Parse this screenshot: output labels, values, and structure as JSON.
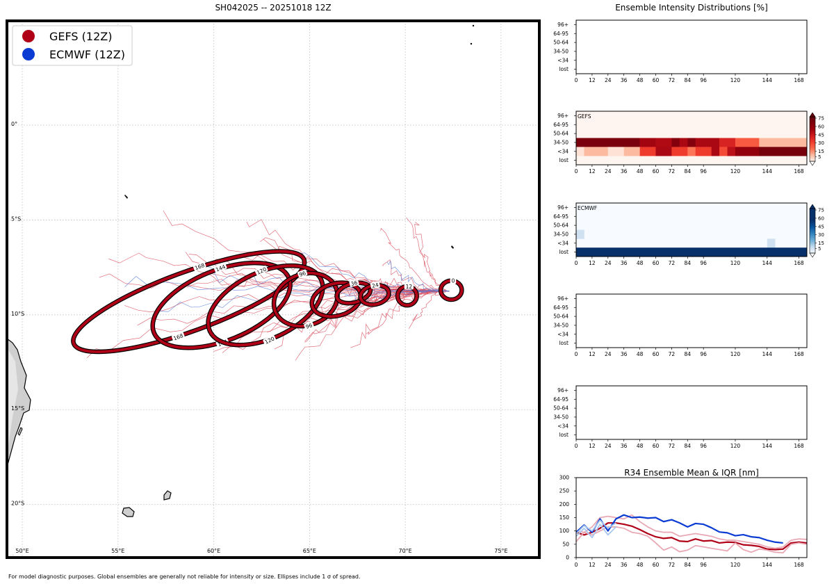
{
  "colors": {
    "gefs": "#b00018",
    "ecmwf": "#0a3cd4",
    "gefs_light": "#e8a8b4",
    "ecmwf_light": "#a8c8ee"
  },
  "map": {
    "title": "SH042025 -- 20251018 12Z",
    "lon_range": [
      49.2,
      77.0
    ],
    "lat_range": [
      -22.8,
      5.5
    ],
    "lon_ticks": [
      50,
      55,
      60,
      65,
      70,
      75
    ],
    "lon_labels": [
      "50°E",
      "55°E",
      "60°E",
      "65°E",
      "70°E",
      "75°E"
    ],
    "lat_ticks": [
      0,
      -5,
      -10,
      -15,
      -20
    ],
    "lat_labels": [
      "0°",
      "5°S",
      "10°S",
      "15°S",
      "20°S"
    ],
    "legend": [
      {
        "label": "GEFS (12Z)",
        "color": "#b00018"
      },
      {
        "label": "ECMWF (12Z)",
        "color": "#0a3cd4"
      }
    ],
    "ellipses": [
      {
        "hour": 0,
        "lon": 72.4,
        "lat": -8.7,
        "rx": 0.55,
        "ry": 0.5,
        "tilt": 0,
        "upper_label": "0",
        "lower_label": ""
      },
      {
        "hour": 12,
        "lon": 70.1,
        "lat": -9.0,
        "rx": 0.5,
        "ry": 0.5,
        "tilt": 0,
        "upper_label": "12",
        "lower_label": ""
      },
      {
        "hour": 24,
        "lon": 68.4,
        "lat": -8.95,
        "rx": 0.75,
        "ry": 0.5,
        "tilt": -12,
        "upper_label": "24",
        "lower_label": ""
      },
      {
        "hour": 36,
        "lon": 67.3,
        "lat": -8.85,
        "rx": 0.9,
        "ry": 0.5,
        "tilt": -15,
        "upper_label": "36",
        "lower_label": ""
      },
      {
        "hour": 48,
        "lon": 66.4,
        "lat": -9.2,
        "rx": 1.3,
        "ry": 0.85,
        "tilt": -15,
        "upper_label": "",
        "lower_label": ""
      },
      {
        "hour": 96,
        "lon": 64.8,
        "lat": -9.2,
        "rx": 1.7,
        "ry": 1.35,
        "tilt": -20,
        "upper_label": "96",
        "lower_label": "96"
      },
      {
        "hour": 120,
        "lon": 62.7,
        "lat": -9.5,
        "rx": 3.2,
        "ry": 1.75,
        "tilt": -25,
        "upper_label": "120",
        "lower_label": "120"
      },
      {
        "hour": 144,
        "lon": 60.4,
        "lat": -9.5,
        "rx": 3.8,
        "ry": 1.85,
        "tilt": -22,
        "upper_label": "144",
        "lower_label": "144"
      },
      {
        "hour": 168,
        "lon": 58.7,
        "lat": -9.3,
        "rx": 6.4,
        "ry": 1.55,
        "tilt": -20,
        "upper_label": "168",
        "lower_label": "168"
      }
    ],
    "footnote": "For model diagnostic purposes. Global ensembles are generally not reliable for intensity or size. Ellipses include 1 σ of spread."
  },
  "intensity": {
    "title": "Ensemble Intensity Distributions [%]",
    "y_labels": [
      "96+",
      "64-95",
      "50-64",
      "34-50",
      "<34",
      "lost"
    ],
    "x_ticks": [
      0,
      12,
      24,
      36,
      48,
      60,
      72,
      84,
      96,
      120,
      144,
      168
    ],
    "x_max": 174,
    "colorbar_ticks": [
      75,
      60,
      45,
      30,
      15,
      5
    ],
    "panels": [
      {
        "label": "",
        "cmap": "none",
        "rows": []
      },
      {
        "label": "GEFS",
        "cmap": "reds",
        "rows": [
          {
            "row": "34-50",
            "cells": [
              [
                0,
                48,
                90
              ],
              [
                48,
                60,
                72
              ],
              [
                60,
                72,
                68
              ],
              [
                72,
                78,
                85
              ],
              [
                78,
                84,
                70
              ],
              [
                84,
                90,
                85
              ],
              [
                90,
                108,
                70
              ],
              [
                108,
                120,
                55
              ],
              [
                120,
                138,
                35
              ],
              [
                138,
                174,
                15
              ]
            ]
          },
          {
            "row": "<34",
            "cells": [
              [
                0,
                6,
                5
              ],
              [
                6,
                24,
                15
              ],
              [
                24,
                36,
                5
              ],
              [
                36,
                48,
                15
              ],
              [
                48,
                60,
                45
              ],
              [
                60,
                72,
                70
              ],
              [
                72,
                84,
                45
              ],
              [
                84,
                90,
                28
              ],
              [
                90,
                102,
                45
              ],
              [
                102,
                108,
                70
              ],
              [
                108,
                114,
                40
              ],
              [
                114,
                120,
                65
              ],
              [
                120,
                138,
                78
              ],
              [
                138,
                174,
                92
              ]
            ]
          },
          {
            "row": "lost",
            "cells": []
          }
        ]
      },
      {
        "label": "ECMWF",
        "cmap": "blues",
        "rows": [
          {
            "row": "34-50",
            "cells": [
              [
                0,
                6,
                12
              ]
            ]
          },
          {
            "row": "<34",
            "cells": [
              [
                144,
                150,
                12
              ]
            ]
          },
          {
            "row": "lost",
            "cells": [
              [
                0,
                174,
                95
              ]
            ]
          }
        ]
      },
      {
        "label": "",
        "cmap": "none",
        "rows": []
      },
      {
        "label": "",
        "cmap": "none",
        "rows": []
      }
    ]
  },
  "chart_data": [
    {
      "type": "line",
      "title": "R34 Ensemble Mean & IQR [nm]",
      "ylim": [
        0,
        300
      ],
      "y_ticks": [
        0,
        50,
        100,
        150,
        200,
        250,
        300
      ],
      "x_ticks": [
        0,
        12,
        24,
        36,
        48,
        60,
        72,
        84,
        96,
        120,
        144,
        168
      ],
      "series": [
        {
          "name": "GEFS mean",
          "color": "#b00018",
          "width": 2.2,
          "x": [
            0,
            6,
            12,
            18,
            24,
            30,
            36,
            42,
            48,
            54,
            60,
            66,
            72,
            78,
            84,
            90,
            96,
            102,
            108,
            114,
            120,
            126,
            132,
            138,
            144,
            150,
            156,
            162,
            168,
            174
          ],
          "y": [
            95,
            85,
            95,
            110,
            130,
            130,
            125,
            118,
            105,
            90,
            78,
            72,
            75,
            62,
            60,
            70,
            62,
            64,
            55,
            58,
            57,
            48,
            46,
            42,
            32,
            30,
            32,
            55,
            58,
            55
          ]
        },
        {
          "name": "GEFS IQR upper",
          "color": "#e8a8b4",
          "width": 1.8,
          "x": [
            0,
            6,
            12,
            18,
            24,
            30,
            36,
            42,
            48,
            54,
            60,
            66,
            72,
            78,
            84,
            90,
            96,
            102,
            108,
            114,
            120,
            126,
            132,
            138,
            144,
            150,
            156,
            162,
            168,
            174
          ],
          "y": [
            100,
            95,
            115,
            150,
            155,
            150,
            145,
            160,
            135,
            115,
            100,
            95,
            95,
            80,
            85,
            90,
            85,
            80,
            70,
            65,
            65,
            60,
            55,
            50,
            40,
            35,
            40,
            65,
            70,
            68
          ]
        },
        {
          "name": "GEFS IQR lower",
          "color": "#e8a8b4",
          "width": 1.8,
          "x": [
            0,
            6,
            12,
            18,
            24,
            30,
            36,
            42,
            48,
            54,
            60,
            66,
            72,
            78,
            84,
            90,
            96,
            102,
            108,
            114,
            120,
            126,
            132,
            138,
            144,
            150,
            156,
            162,
            168,
            174
          ],
          "y": [
            60,
            95,
            85,
            100,
            115,
            115,
            110,
            95,
            90,
            80,
            55,
            28,
            40,
            22,
            28,
            45,
            40,
            35,
            30,
            25,
            55,
            30,
            20,
            32,
            28,
            20,
            18,
            50,
            55,
            50
          ]
        },
        {
          "name": "ECMWF mean",
          "color": "#0a3cd4",
          "width": 2.2,
          "x": [
            0,
            6,
            12,
            18,
            24,
            30,
            36,
            42,
            48,
            54,
            60,
            66,
            72,
            78,
            84,
            90,
            96,
            102,
            108,
            114,
            120,
            126,
            132,
            138,
            144,
            150,
            156
          ],
          "y": [
            95,
            122,
            95,
            145,
            100,
            145,
            160,
            150,
            152,
            148,
            150,
            135,
            142,
            130,
            115,
            128,
            125,
            112,
            96,
            93,
            82,
            86,
            78,
            75,
            65,
            58,
            55
          ]
        },
        {
          "name": "ECMWF IQR upper",
          "color": "#a8c8ee",
          "width": 1.8,
          "x": [
            0,
            6,
            12,
            18,
            24,
            30
          ],
          "y": [
            90,
            120,
            100,
            140,
            110,
            130
          ]
        },
        {
          "name": "ECMWF IQR lower",
          "color": "#a8c8ee",
          "width": 1.8,
          "x": [
            0,
            6,
            12,
            18,
            24,
            30
          ],
          "y": [
            80,
            110,
            75,
            125,
            85,
            115
          ]
        }
      ]
    }
  ]
}
